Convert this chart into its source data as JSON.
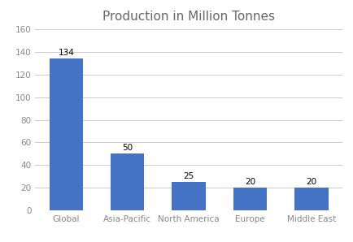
{
  "title": "Production in Million Tonnes",
  "categories": [
    "Global",
    "Asia-Pacific",
    "North America",
    "Europe",
    "Middle East"
  ],
  "values": [
    134,
    50,
    25,
    20,
    20
  ],
  "bar_color": "#4472C4",
  "ylim": [
    0,
    160
  ],
  "yticks": [
    0,
    20,
    40,
    60,
    80,
    100,
    120,
    140,
    160
  ],
  "title_fontsize": 11,
  "tick_fontsize": 7.5,
  "bar_label_fontsize": 7.5,
  "background_color": "#ffffff",
  "grid_color": "#cccccc",
  "title_color": "#666666"
}
